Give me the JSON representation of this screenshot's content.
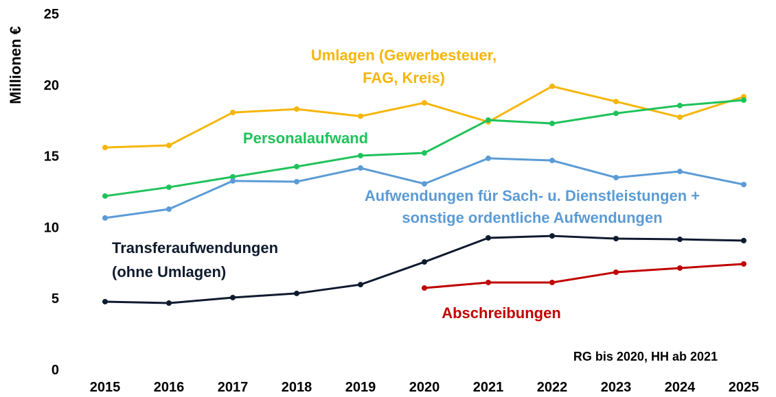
{
  "chart_data": {
    "type": "line",
    "y_label": "Millionen €",
    "annotation": "RG bis 2020, HH ab 2021",
    "categories": [
      "2015",
      "2016",
      "2017",
      "2018",
      "2019",
      "2020",
      "2021",
      "2022",
      "2023",
      "2024",
      "2025"
    ],
    "ylim": [
      0,
      25
    ],
    "yticks": [
      0,
      5,
      10,
      15,
      20,
      25
    ],
    "grid": false,
    "series": [
      {
        "name": [
          "Umlagen (Gewerbesteuer,",
          "FAG, Kreis)"
        ],
        "color": "#f5b60a",
        "values": [
          15.6,
          15.75,
          18.06,
          18.3,
          17.8,
          18.74,
          17.4,
          19.9,
          18.83,
          17.73,
          19.17
        ]
      },
      {
        "name": [
          "Personalaufwand"
        ],
        "color": "#1fc25a",
        "values": [
          12.19,
          12.81,
          13.54,
          14.26,
          15.03,
          15.22,
          17.53,
          17.29,
          18.0,
          18.55,
          18.93
        ]
      },
      {
        "name": [
          "Aufwendungen für Sach- u. Dienstleistungen +",
          "sonstige ordentliche Aufwendungen"
        ],
        "color": "#5b9bd5",
        "values": [
          10.65,
          11.27,
          13.25,
          13.2,
          14.16,
          13.05,
          14.84,
          14.69,
          13.49,
          13.92,
          13.0
        ]
      },
      {
        "name": [
          "Transferaufwendungen",
          "(ohne Umlagen)"
        ],
        "color": "#0e1a2e",
        "values": [
          4.77,
          4.67,
          5.06,
          5.35,
          5.97,
          7.56,
          9.25,
          9.39,
          9.2,
          9.15,
          9.06
        ]
      },
      {
        "name": [
          "Abschreibungen"
        ],
        "color": "#c00000",
        "values": [
          null,
          null,
          null,
          null,
          null,
          5.73,
          6.12,
          6.12,
          6.84,
          7.13,
          7.42
        ]
      }
    ]
  }
}
